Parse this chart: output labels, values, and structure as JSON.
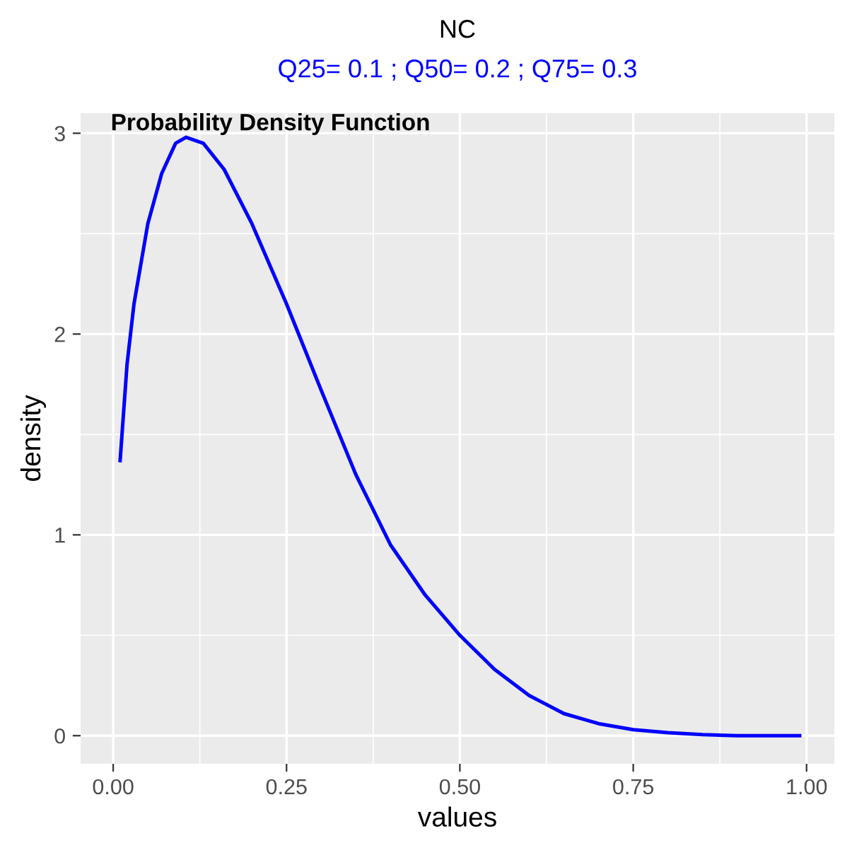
{
  "chart_data": {
    "type": "line",
    "title": "NC",
    "subtitle": "Q25= 0.1 ; Q50= 0.2 ; Q75= 0.3",
    "xlabel": "values",
    "ylabel": "density",
    "annotations": [
      "Probability Density Function"
    ],
    "series": [
      {
        "color": "#0000ff",
        "x": [
          0.01,
          0.02,
          0.03,
          0.05,
          0.07,
          0.09,
          0.105,
          0.13,
          0.16,
          0.2,
          0.25,
          0.3,
          0.35,
          0.4,
          0.45,
          0.5,
          0.55,
          0.6,
          0.65,
          0.7,
          0.75,
          0.8,
          0.85,
          0.9,
          0.95,
          0.99
        ],
        "values": [
          1.37,
          1.85,
          2.15,
          2.55,
          2.8,
          2.95,
          2.98,
          2.95,
          2.82,
          2.55,
          2.15,
          1.72,
          1.3,
          0.95,
          0.7,
          0.5,
          0.33,
          0.2,
          0.11,
          0.06,
          0.03,
          0.015,
          0.005,
          0.0,
          0.0,
          0.0
        ]
      }
    ],
    "xlim": [
      -0.047,
      1.04
    ],
    "ylim": [
      -0.14,
      3.1
    ],
    "xticks": [
      {
        "value": 0,
        "label": "0.00"
      },
      {
        "value": 0.25,
        "label": "0.25"
      },
      {
        "value": 0.5,
        "label": "0.50"
      },
      {
        "value": 0.75,
        "label": "0.75"
      },
      {
        "value": 1,
        "label": "1.00"
      }
    ],
    "yticks": [
      0,
      1,
      2,
      3
    ],
    "grid": true,
    "marker": "none",
    "line_style": "solid"
  }
}
